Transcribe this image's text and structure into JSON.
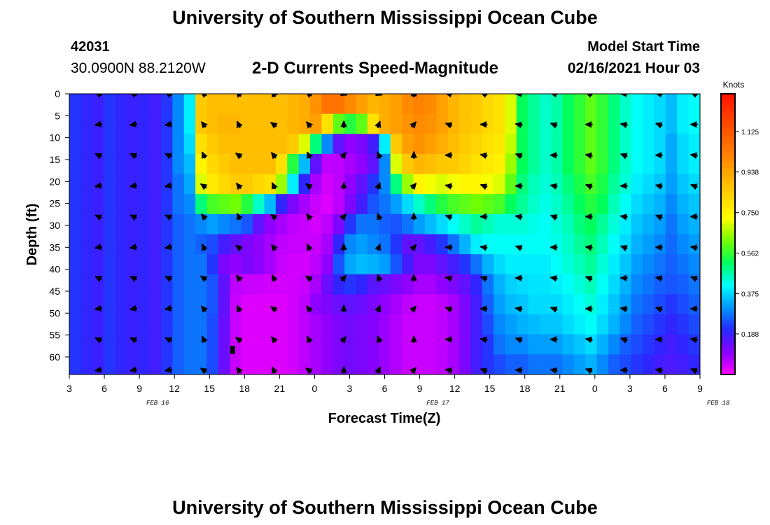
{
  "header": {
    "title": "University of Southern Mississippi Ocean Cube",
    "station_id": "42031",
    "coordinates": "30.0900N 88.2120W",
    "subtitle": "2-D Currents Speed-Magnitude",
    "model_start_label": "Model Start Time",
    "model_start_value": "02/16/2021 Hour 03"
  },
  "footer": {
    "title": "University of Southern Mississippi Ocean Cube"
  },
  "chart_data": {
    "type": "heatmap",
    "title": "2-D Currents Speed-Magnitude",
    "xlabel": "Forecast Time(Z)",
    "ylabel": "Depth (ft)",
    "x_tick_labels": [
      "3",
      "6",
      "9",
      "12",
      "15",
      "18",
      "21",
      "0",
      "3",
      "6",
      "9",
      "12",
      "15",
      "18",
      "21",
      "0",
      "3",
      "6",
      "9"
    ],
    "x_hours_from_start": [
      0,
      3,
      6,
      9,
      12,
      15,
      18,
      21,
      24,
      27,
      30,
      33,
      36,
      39,
      42,
      45,
      48,
      51,
      54
    ],
    "date_labels": [
      {
        "label": "FEB 16",
        "hour": 9
      },
      {
        "label": "FEB 17",
        "hour": 33
      },
      {
        "label": "FEB 18",
        "hour": 57
      }
    ],
    "y_ticks": [
      0,
      5,
      10,
      15,
      20,
      25,
      30,
      35,
      40,
      45,
      50,
      55,
      60
    ],
    "ylim": [
      0,
      64
    ],
    "xlim_hours": [
      0,
      54
    ],
    "colorbar": {
      "unit": "Knots",
      "min": 0.0,
      "max": 1.3,
      "tick_values": [
        1.125,
        0.938,
        0.75,
        0.562,
        0.375,
        0.188
      ],
      "tick_labels": [
        "1.125",
        "0.938",
        "0.750",
        "0.562",
        "0.375",
        "0.188"
      ]
    },
    "arrow_times_hours": [
      2.5,
      5.5,
      8.5,
      11.5,
      14.5,
      17.5,
      20.5,
      23.5,
      26.5,
      29.5,
      32.5,
      35.5,
      38.5,
      41.5,
      44.5,
      47.5,
      50.5,
      53.5
    ],
    "arrow_depths_ft": [
      0,
      7,
      14,
      21,
      28,
      35,
      42,
      49,
      56,
      63
    ],
    "speed_knots": [
      [
        0.22,
        0.2,
        0.19,
        0.22,
        0.2,
        0.19,
        0.2,
        0.18,
        0.22,
        0.3,
        0.4,
        0.85,
        0.88,
        0.88,
        0.88,
        0.88,
        0.88,
        0.88,
        0.88,
        0.9,
        0.92,
        0.98,
        1.05,
        1.05,
        1.0,
        0.95,
        0.9,
        0.92,
        0.95,
        1.0,
        1.02,
        1.0,
        0.95,
        0.9,
        0.87,
        0.85,
        0.82,
        0.8,
        0.7,
        0.52,
        0.48,
        0.45,
        0.47,
        0.52,
        0.56,
        0.6,
        0.56,
        0.5,
        0.45,
        0.42,
        0.4,
        0.38,
        0.35,
        0.4,
        0.42
      ],
      [
        0.22,
        0.2,
        0.19,
        0.22,
        0.2,
        0.19,
        0.2,
        0.18,
        0.22,
        0.3,
        0.4,
        0.85,
        0.88,
        0.9,
        0.9,
        0.88,
        0.88,
        0.88,
        0.88,
        0.9,
        0.92,
        0.95,
        0.8,
        0.6,
        0.55,
        0.6,
        0.8,
        0.92,
        0.95,
        0.98,
        1.0,
        0.98,
        0.95,
        0.9,
        0.87,
        0.85,
        0.82,
        0.8,
        0.7,
        0.52,
        0.48,
        0.45,
        0.47,
        0.52,
        0.56,
        0.6,
        0.56,
        0.5,
        0.45,
        0.42,
        0.4,
        0.38,
        0.35,
        0.4,
        0.42
      ],
      [
        0.22,
        0.2,
        0.19,
        0.22,
        0.2,
        0.19,
        0.2,
        0.18,
        0.22,
        0.3,
        0.38,
        0.8,
        0.85,
        0.88,
        0.88,
        0.88,
        0.88,
        0.88,
        0.88,
        0.85,
        0.7,
        0.5,
        0.3,
        0.15,
        0.1,
        0.12,
        0.18,
        0.4,
        0.85,
        0.95,
        0.98,
        0.95,
        0.92,
        0.88,
        0.85,
        0.83,
        0.8,
        0.78,
        0.68,
        0.52,
        0.48,
        0.45,
        0.47,
        0.52,
        0.56,
        0.6,
        0.56,
        0.5,
        0.45,
        0.42,
        0.4,
        0.38,
        0.33,
        0.38,
        0.4
      ],
      [
        0.22,
        0.2,
        0.19,
        0.22,
        0.2,
        0.19,
        0.2,
        0.18,
        0.22,
        0.3,
        0.35,
        0.75,
        0.82,
        0.85,
        0.88,
        0.88,
        0.88,
        0.88,
        0.8,
        0.55,
        0.35,
        0.15,
        0.06,
        0.06,
        0.08,
        0.1,
        0.15,
        0.3,
        0.7,
        0.85,
        0.9,
        0.88,
        0.86,
        0.85,
        0.83,
        0.8,
        0.78,
        0.76,
        0.65,
        0.52,
        0.48,
        0.45,
        0.47,
        0.52,
        0.56,
        0.6,
        0.56,
        0.5,
        0.45,
        0.42,
        0.4,
        0.38,
        0.33,
        0.38,
        0.4
      ],
      [
        0.22,
        0.2,
        0.19,
        0.22,
        0.2,
        0.19,
        0.2,
        0.18,
        0.22,
        0.28,
        0.33,
        0.7,
        0.78,
        0.82,
        0.85,
        0.85,
        0.82,
        0.8,
        0.65,
        0.4,
        0.2,
        0.08,
        0.04,
        0.06,
        0.1,
        0.15,
        0.22,
        0.3,
        0.5,
        0.65,
        0.75,
        0.72,
        0.7,
        0.72,
        0.75,
        0.75,
        0.72,
        0.7,
        0.6,
        0.5,
        0.46,
        0.44,
        0.46,
        0.5,
        0.54,
        0.58,
        0.54,
        0.48,
        0.44,
        0.4,
        0.38,
        0.36,
        0.32,
        0.36,
        0.38
      ],
      [
        0.22,
        0.2,
        0.19,
        0.22,
        0.2,
        0.19,
        0.2,
        0.18,
        0.22,
        0.28,
        0.3,
        0.5,
        0.58,
        0.6,
        0.62,
        0.55,
        0.45,
        0.35,
        0.2,
        0.12,
        0.08,
        0.05,
        0.03,
        0.06,
        0.12,
        0.18,
        0.25,
        0.28,
        0.32,
        0.38,
        0.45,
        0.5,
        0.55,
        0.58,
        0.6,
        0.62,
        0.6,
        0.58,
        0.52,
        0.48,
        0.45,
        0.43,
        0.45,
        0.48,
        0.52,
        0.55,
        0.52,
        0.46,
        0.42,
        0.38,
        0.36,
        0.34,
        0.3,
        0.34,
        0.36
      ],
      [
        0.22,
        0.2,
        0.19,
        0.22,
        0.2,
        0.19,
        0.2,
        0.18,
        0.22,
        0.26,
        0.28,
        0.3,
        0.32,
        0.3,
        0.28,
        0.25,
        0.15,
        0.1,
        0.08,
        0.06,
        0.05,
        0.04,
        0.06,
        0.12,
        0.22,
        0.28,
        0.28,
        0.26,
        0.25,
        0.28,
        0.32,
        0.35,
        0.38,
        0.42,
        0.45,
        0.48,
        0.46,
        0.44,
        0.44,
        0.44,
        0.43,
        0.42,
        0.44,
        0.46,
        0.5,
        0.52,
        0.48,
        0.44,
        0.4,
        0.36,
        0.34,
        0.32,
        0.28,
        0.32,
        0.34
      ],
      [
        0.22,
        0.2,
        0.19,
        0.22,
        0.2,
        0.19,
        0.2,
        0.18,
        0.22,
        0.26,
        0.28,
        0.26,
        0.24,
        0.18,
        0.15,
        0.12,
        0.1,
        0.08,
        0.06,
        0.05,
        0.05,
        0.05,
        0.08,
        0.2,
        0.3,
        0.32,
        0.3,
        0.28,
        0.22,
        0.15,
        0.15,
        0.18,
        0.22,
        0.28,
        0.34,
        0.4,
        0.42,
        0.42,
        0.42,
        0.42,
        0.42,
        0.42,
        0.43,
        0.45,
        0.48,
        0.5,
        0.46,
        0.42,
        0.38,
        0.34,
        0.32,
        0.3,
        0.27,
        0.3,
        0.32
      ],
      [
        0.22,
        0.2,
        0.19,
        0.22,
        0.2,
        0.19,
        0.2,
        0.18,
        0.22,
        0.26,
        0.28,
        0.28,
        0.22,
        0.12,
        0.1,
        0.12,
        0.1,
        0.08,
        0.05,
        0.04,
        0.04,
        0.06,
        0.1,
        0.25,
        0.33,
        0.35,
        0.34,
        0.32,
        0.25,
        0.18,
        0.12,
        0.12,
        0.15,
        0.18,
        0.22,
        0.28,
        0.34,
        0.38,
        0.4,
        0.4,
        0.4,
        0.4,
        0.42,
        0.44,
        0.46,
        0.48,
        0.44,
        0.4,
        0.36,
        0.32,
        0.3,
        0.28,
        0.26,
        0.28,
        0.3
      ],
      [
        0.22,
        0.2,
        0.19,
        0.22,
        0.2,
        0.19,
        0.2,
        0.18,
        0.22,
        0.26,
        0.28,
        0.28,
        0.25,
        0.15,
        0.06,
        0.05,
        0.05,
        0.04,
        0.04,
        0.04,
        0.05,
        0.08,
        0.14,
        0.2,
        0.22,
        0.2,
        0.16,
        0.14,
        0.12,
        0.1,
        0.08,
        0.08,
        0.1,
        0.12,
        0.15,
        0.2,
        0.28,
        0.34,
        0.37,
        0.38,
        0.39,
        0.39,
        0.4,
        0.42,
        0.44,
        0.46,
        0.42,
        0.38,
        0.34,
        0.3,
        0.28,
        0.26,
        0.25,
        0.26,
        0.28
      ],
      [
        0.22,
        0.2,
        0.19,
        0.22,
        0.2,
        0.19,
        0.2,
        0.18,
        0.22,
        0.26,
        0.28,
        0.28,
        0.25,
        0.15,
        0.05,
        0.03,
        0.03,
        0.03,
        0.03,
        0.04,
        0.06,
        0.1,
        0.12,
        0.14,
        0.15,
        0.14,
        0.12,
        0.1,
        0.08,
        0.06,
        0.05,
        0.05,
        0.06,
        0.08,
        0.12,
        0.18,
        0.26,
        0.32,
        0.35,
        0.36,
        0.38,
        0.38,
        0.38,
        0.4,
        0.42,
        0.44,
        0.4,
        0.36,
        0.32,
        0.28,
        0.26,
        0.24,
        0.22,
        0.24,
        0.26
      ],
      [
        0.22,
        0.2,
        0.19,
        0.22,
        0.2,
        0.19,
        0.2,
        0.18,
        0.22,
        0.26,
        0.28,
        0.28,
        0.24,
        0.14,
        0.05,
        0.03,
        0.03,
        0.03,
        0.03,
        0.04,
        0.06,
        0.08,
        0.1,
        0.12,
        0.13,
        0.12,
        0.11,
        0.09,
        0.07,
        0.05,
        0.05,
        0.05,
        0.06,
        0.08,
        0.12,
        0.18,
        0.24,
        0.3,
        0.32,
        0.34,
        0.35,
        0.36,
        0.36,
        0.38,
        0.4,
        0.42,
        0.38,
        0.34,
        0.3,
        0.26,
        0.24,
        0.22,
        0.2,
        0.22,
        0.24
      ],
      [
        0.22,
        0.2,
        0.19,
        0.22,
        0.2,
        0.19,
        0.2,
        0.18,
        0.22,
        0.26,
        0.28,
        0.28,
        0.24,
        0.14,
        0.05,
        0.03,
        0.03,
        0.03,
        0.03,
        0.04,
        0.06,
        0.08,
        0.1,
        0.12,
        0.13,
        0.12,
        0.11,
        0.09,
        0.07,
        0.05,
        0.05,
        0.05,
        0.06,
        0.08,
        0.12,
        0.18,
        0.22,
        0.28,
        0.3,
        0.3,
        0.32,
        0.32,
        0.32,
        0.34,
        0.36,
        0.38,
        0.34,
        0.3,
        0.26,
        0.24,
        0.22,
        0.2,
        0.18,
        0.2,
        0.22
      ],
      [
        0.22,
        0.2,
        0.19,
        0.22,
        0.2,
        0.19,
        0.2,
        0.18,
        0.22,
        0.26,
        0.28,
        0.28,
        0.24,
        0.14,
        0.05,
        0.03,
        0.03,
        0.03,
        0.03,
        0.04,
        0.06,
        0.08,
        0.1,
        0.12,
        0.13,
        0.12,
        0.11,
        0.09,
        0.07,
        0.05,
        0.05,
        0.05,
        0.06,
        0.08,
        0.12,
        0.18,
        0.22,
        0.24,
        0.26,
        0.26,
        0.28,
        0.28,
        0.28,
        0.3,
        0.32,
        0.34,
        0.3,
        0.26,
        0.24,
        0.22,
        0.2,
        0.18,
        0.17,
        0.18,
        0.2
      ]
    ]
  }
}
